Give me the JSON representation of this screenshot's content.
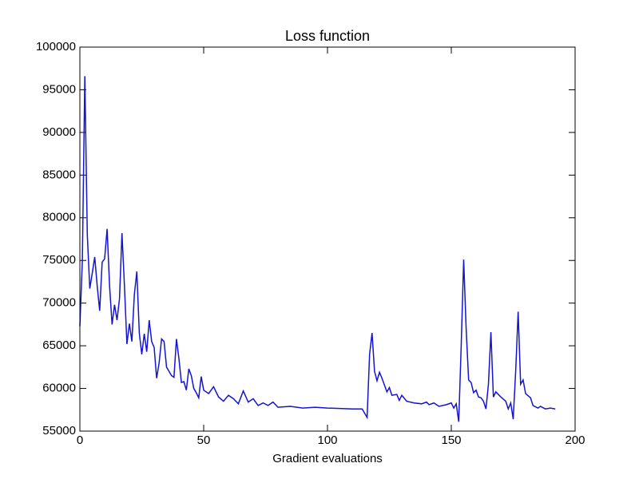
{
  "chart_data": {
    "type": "line",
    "title": "Loss function",
    "xlabel": "Gradient evaluations",
    "x": [
      0,
      1,
      2,
      3,
      4,
      5,
      6,
      7,
      8,
      9,
      10,
      11,
      12,
      13,
      14,
      15,
      16,
      17,
      18,
      19,
      20,
      21,
      22,
      23,
      24,
      25,
      26,
      27,
      28,
      29,
      30,
      31,
      32,
      33,
      34,
      35,
      36,
      37,
      38,
      39,
      40,
      41,
      42,
      43,
      44,
      45,
      46,
      47,
      48,
      49,
      50,
      52,
      54,
      56,
      58,
      60,
      62,
      64,
      66,
      68,
      70,
      72,
      74,
      76,
      78,
      80,
      85,
      90,
      95,
      100,
      105,
      110,
      114,
      116,
      117,
      118,
      119,
      120,
      121,
      122,
      124,
      125,
      126,
      128,
      129,
      130,
      132,
      135,
      138,
      140,
      141,
      143,
      145,
      148,
      150,
      151,
      152,
      153,
      154,
      155,
      156,
      157,
      158,
      159,
      160,
      161,
      162,
      163,
      164,
      165,
      166,
      167,
      168,
      170,
      172,
      173,
      174,
      175,
      176,
      177,
      178,
      179,
      180,
      182,
      183,
      185,
      186,
      188,
      190,
      192
    ],
    "series": [
      {
        "name": "Loss",
        "color": "#1414d2",
        "values": [
          67300,
          75000,
          96600,
          78000,
          71700,
          73500,
          75400,
          72000,
          69100,
          74800,
          75200,
          78700,
          72000,
          67500,
          69800,
          68000,
          70500,
          78200,
          72000,
          65200,
          67600,
          65500,
          71000,
          73700,
          66500,
          64000,
          66400,
          64300,
          68000,
          65500,
          64800,
          61200,
          63000,
          65800,
          65500,
          62500,
          62000,
          61500,
          61300,
          65800,
          63500,
          60700,
          60800,
          59800,
          62300,
          61500,
          60000,
          59500,
          58900,
          61400,
          59800,
          59400,
          60200,
          59000,
          58500,
          59200,
          58800,
          58200,
          59700,
          58400,
          58800,
          58000,
          58300,
          58000,
          58400,
          57800,
          57900,
          57700,
          57800,
          57700,
          57650,
          57600,
          57600,
          56600,
          64000,
          66500,
          62000,
          60900,
          61900,
          61200,
          59600,
          60100,
          59200,
          59300,
          58600,
          59200,
          58500,
          58300,
          58200,
          58400,
          58100,
          58300,
          57900,
          58100,
          58300,
          57700,
          58200,
          56100,
          65000,
          75100,
          67000,
          61000,
          60700,
          59500,
          59800,
          59000,
          58900,
          58500,
          57600,
          60500,
          66600,
          59000,
          59600,
          59000,
          58500,
          57600,
          58300,
          56400,
          62000,
          69000,
          60500,
          61000,
          59400,
          58900,
          58000,
          57700,
          57900,
          57600,
          57700,
          57600
        ]
      }
    ],
    "xlim": [
      0,
      200
    ],
    "xticks": [
      0,
      50,
      100,
      150,
      200
    ],
    "ylim": [
      55000,
      100000
    ],
    "yticks": [
      55000,
      60000,
      65000,
      70000,
      75000,
      80000,
      85000,
      90000,
      95000,
      100000
    ]
  }
}
